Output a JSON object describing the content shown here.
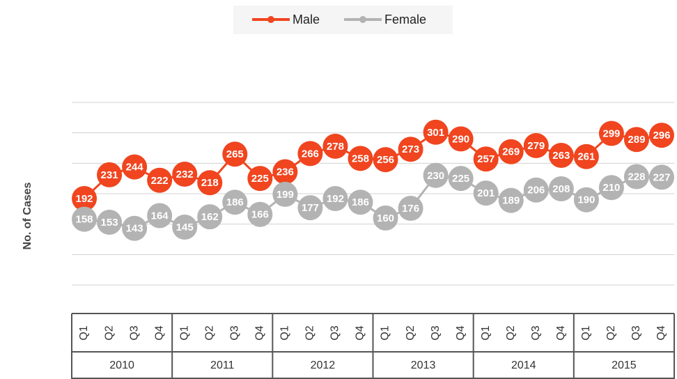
{
  "chart_data": {
    "type": "line",
    "y_label": "No. of Cases",
    "categories": [
      "Q1",
      "Q2",
      "Q3",
      "Q4",
      "Q1",
      "Q2",
      "Q3",
      "Q4",
      "Q1",
      "Q2",
      "Q3",
      "Q4",
      "Q1",
      "Q2",
      "Q3",
      "Q4",
      "Q1",
      "Q2",
      "Q3",
      "Q4",
      "Q1",
      "Q2",
      "Q3",
      "Q4"
    ],
    "groups": [
      "2010",
      "2011",
      "2012",
      "2013",
      "2014",
      "2015"
    ],
    "series": [
      {
        "name": "Male",
        "color": "#f0451f",
        "values": [
          192,
          231,
          244,
          222,
          232,
          218,
          265,
          225,
          236,
          266,
          278,
          258,
          256,
          273,
          301,
          290,
          257,
          269,
          279,
          263,
          261,
          299,
          289,
          296
        ]
      },
      {
        "name": "Female",
        "color": "#b3b3b3",
        "values": [
          158,
          153,
          143,
          164,
          145,
          162,
          186,
          166,
          199,
          177,
          192,
          186,
          160,
          176,
          230,
          225,
          201,
          189,
          206,
          208,
          190,
          210,
          228,
          227
        ]
      }
    ],
    "ylim": [
      50,
      350
    ],
    "yticks": [
      50,
      100,
      150,
      200,
      250,
      300,
      350
    ],
    "grid": true,
    "legend": "top"
  }
}
